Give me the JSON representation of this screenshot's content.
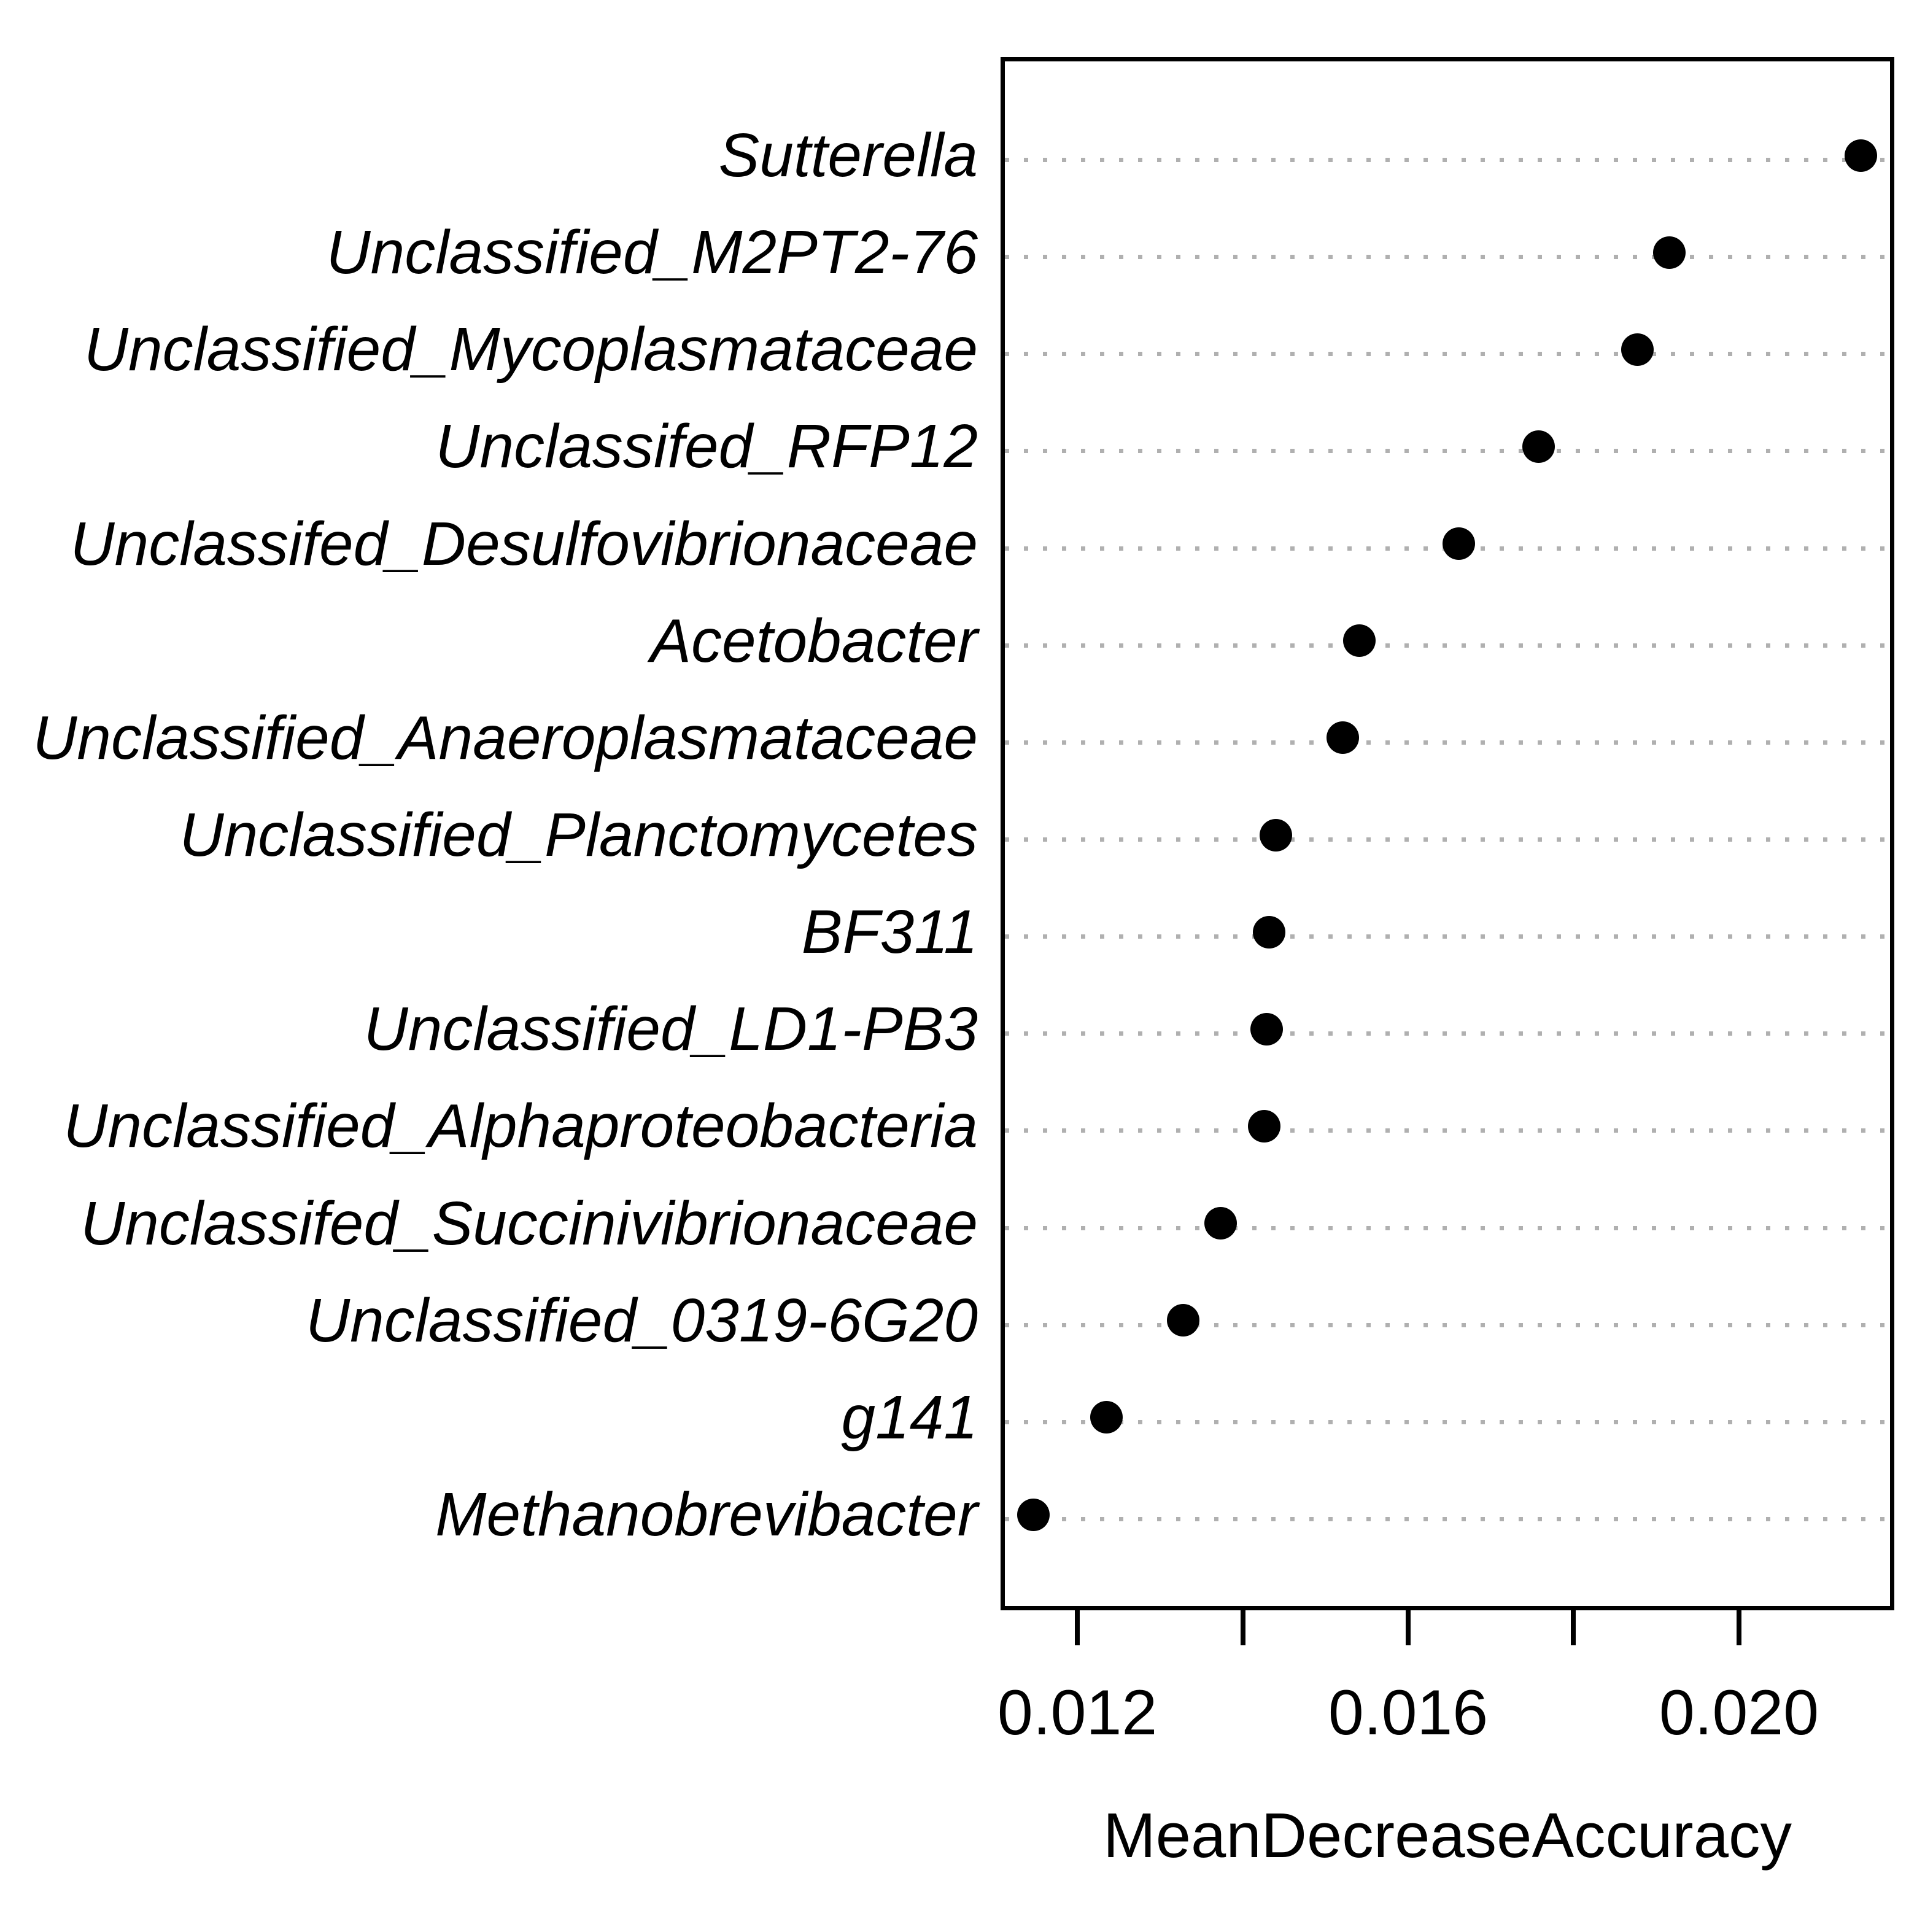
{
  "chart_data": {
    "type": "scatter",
    "subtype": "dotchart-variable-importance",
    "title": "",
    "xlabel": "MeanDecreaseAccuracy",
    "ylabel": "",
    "categories": [
      "Sutterella",
      "Unclassified_M2PT2-76",
      "Unclassified_Mycoplasmataceae",
      "Unclassifed_RFP12",
      "Unclassifed_Desulfovibrionaceae",
      "Acetobacter",
      "Unclassified_Anaeroplasmataceae",
      "Unclassified_Planctomycetes",
      "BF311",
      "Unclassified_LD1-PB3",
      "Unclassified_Alphaproteobacteria",
      "Unclassifed_Succinivibrionaceae",
      "Unclassified_0319-6G20",
      "g141",
      "Methanobrevibacter"
    ],
    "values": [
      0.02147,
      0.01916,
      0.01877,
      0.01758,
      0.01661,
      0.01541,
      0.01521,
      0.0144,
      0.01432,
      0.01429,
      0.01426,
      0.01373,
      0.01328,
      0.01235,
      0.01147
    ],
    "xlim": [
      0.011072,
      0.021878
    ],
    "x_ticks": [
      0.012,
      0.014,
      0.016,
      0.018,
      0.02
    ],
    "x_tick_labels": [
      "0.012",
      "",
      "0.016",
      "",
      "0.020"
    ],
    "grid": "dotted-horizontal",
    "legend": "none",
    "point_color": "#000000",
    "gridline_color": "#b0b0b0",
    "label_style": "italic"
  }
}
